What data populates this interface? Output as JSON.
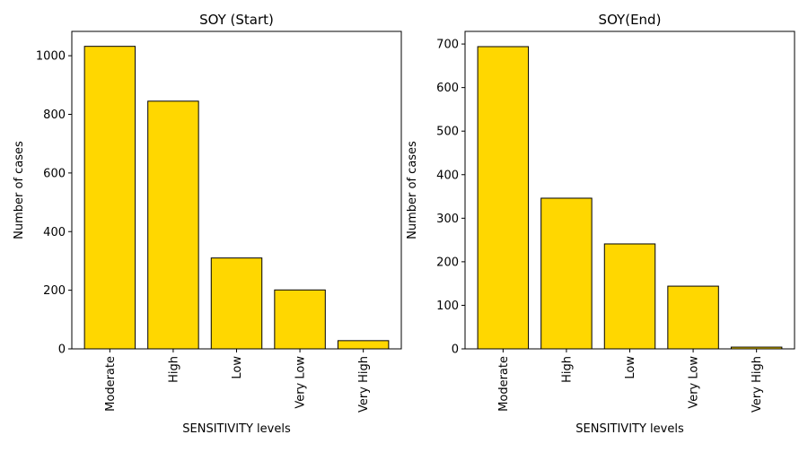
{
  "chart_data": [
    {
      "type": "bar",
      "title": "SOY (Start)",
      "xlabel": "SENSITIVITY levels",
      "ylabel": "Number of cases",
      "categories": [
        "Moderate",
        "High",
        "Low",
        "Very Low",
        "Very High"
      ],
      "values": [
        1032,
        845,
        310,
        201,
        28
      ],
      "ylim": [
        0,
        1083
      ],
      "yticks": [
        0,
        200,
        400,
        600,
        800,
        1000
      ],
      "bar_color": "#ffd700",
      "edge_color": "#000000",
      "grid": false
    },
    {
      "type": "bar",
      "title": "SOY(End)",
      "xlabel": "SENSITIVITY levels",
      "ylabel": "Number of cases",
      "categories": [
        "Moderate",
        "High",
        "Low",
        "Very Low",
        "Very High"
      ],
      "values": [
        694,
        346,
        241,
        144,
        4
      ],
      "ylim": [
        0,
        729
      ],
      "yticks": [
        0,
        100,
        200,
        300,
        400,
        500,
        600,
        700
      ],
      "bar_color": "#ffd700",
      "edge_color": "#000000",
      "grid": false
    }
  ]
}
